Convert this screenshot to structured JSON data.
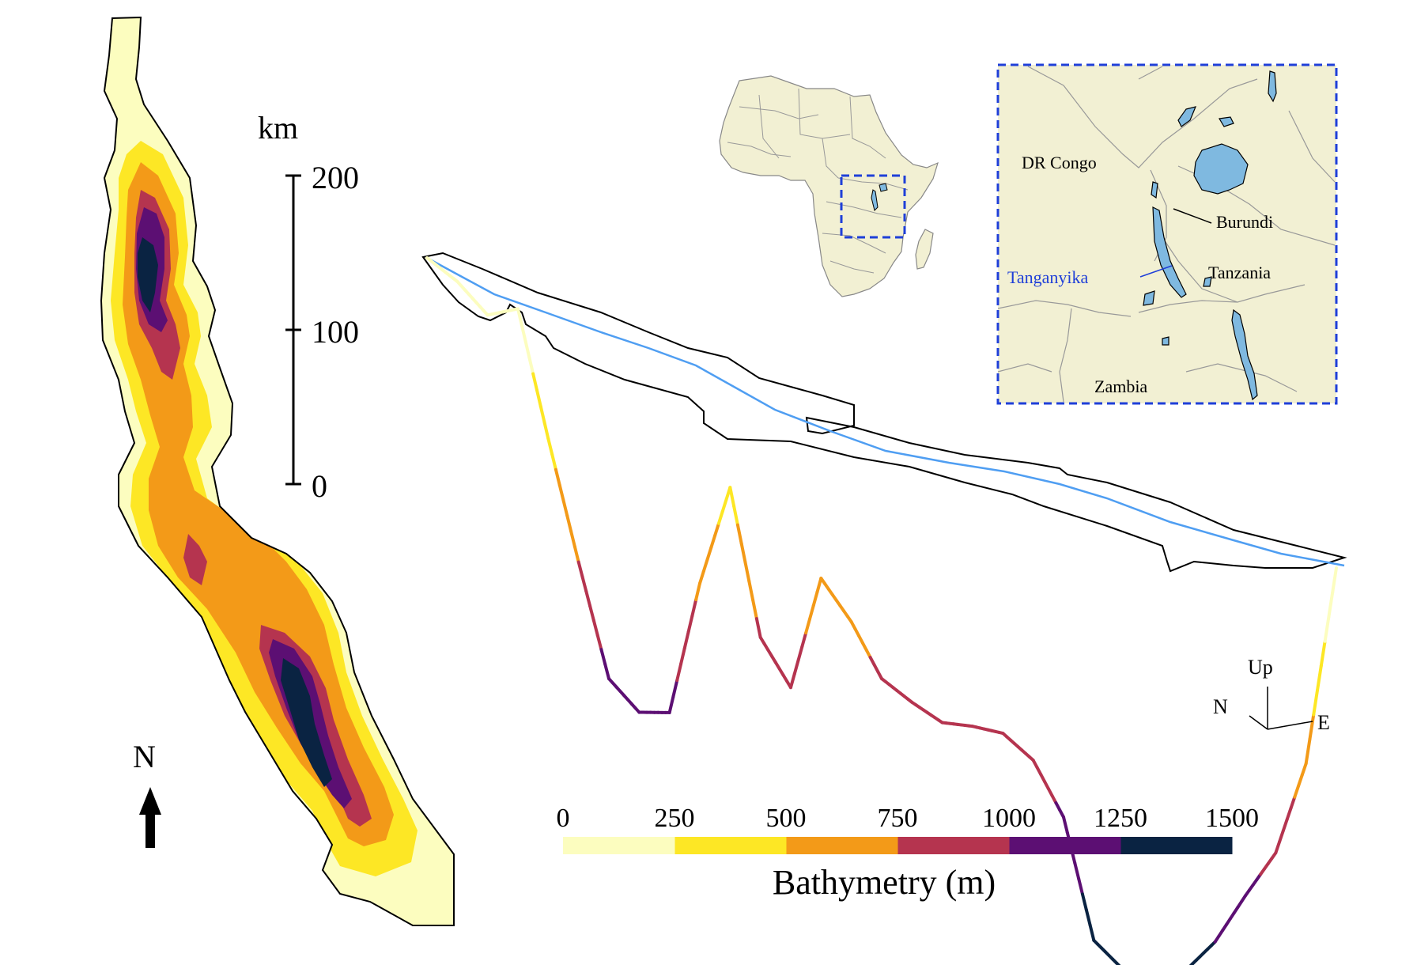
{
  "scale_bar": {
    "unit": "km",
    "ticks": [
      "200",
      "100",
      "0"
    ]
  },
  "north_arrow": {
    "label": "N"
  },
  "inset": {
    "countries": [
      "DR Congo",
      "Burundi",
      "Tanzania",
      "Zambia"
    ],
    "lake_label": "Tanganyika",
    "lake_label_color": "#1f3fd8",
    "extent_box_color": "#1f3fd8"
  },
  "axes_triad": {
    "up": "Up",
    "north": "N",
    "east": "E"
  },
  "colorbar": {
    "title": "Bathymetry (m)",
    "ticks": [
      "0",
      "250",
      "500",
      "750",
      "1000",
      "1250",
      "1500"
    ],
    "bins": [
      {
        "from": 0,
        "to": 250,
        "color": "#fcfdbf"
      },
      {
        "from": 250,
        "to": 500,
        "color": "#fde725"
      },
      {
        "from": 500,
        "to": 750,
        "color": "#f39a18"
      },
      {
        "from": 750,
        "to": 1000,
        "color": "#b5344f"
      },
      {
        "from": 1000,
        "to": 1250,
        "color": "#5c0f73"
      },
      {
        "from": 1250,
        "to": 1500,
        "color": "#0a2342"
      }
    ]
  },
  "profile": {
    "surface_line_color": "#4f9ef2",
    "depth_profile_m": [
      0,
      40,
      110,
      60,
      420,
      760,
      1080,
      1150,
      1120,
      700,
      380,
      800,
      920,
      560,
      660,
      800,
      840,
      870,
      850,
      840,
      890,
      1030,
      1370,
      1430,
      1440,
      1370,
      1250,
      1080,
      920,
      620,
      0
    ]
  }
}
